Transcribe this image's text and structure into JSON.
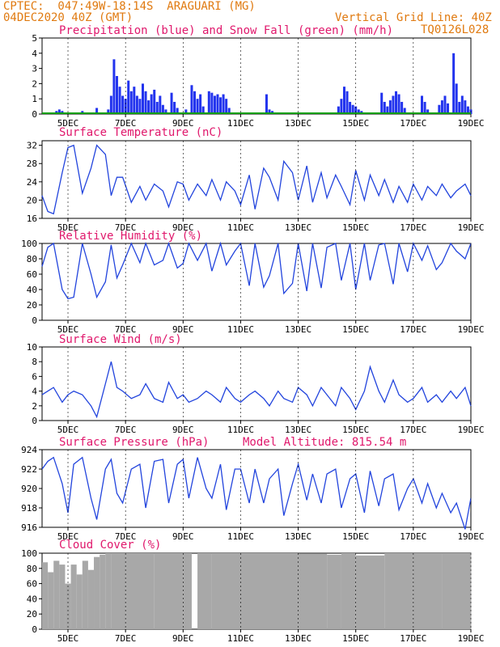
{
  "header": {
    "line1": "CPTEC:  047:49W-18:14S  ARAGUARI (MG)",
    "line2": "04DEC2020 40Z (GMT)",
    "vgrid": "Vertical Grid Line: 40Z",
    "code": "TQ0126L028"
  },
  "colors": {
    "header": "#e07a10",
    "title": "#e0186c",
    "line": "#2244dd",
    "precip": "#2233ee",
    "snow": "#10a010",
    "cloud": "#a8a8a8"
  },
  "x_ticks": [
    "5DEC",
    "7DEC",
    "9DEC",
    "11DEC",
    "13DEC",
    "15DEC",
    "17DEC",
    "19DEC"
  ],
  "chart_data": [
    {
      "id": "precip",
      "type": "bar",
      "title": "Precipitation (blue) and Snow Fall (green) (mm/h)",
      "ylim": [
        0,
        5
      ],
      "yticks": [
        0,
        1,
        2,
        3,
        4,
        5
      ],
      "x_range_days": [
        4.1,
        19.0
      ],
      "series": [
        {
          "name": "Precipitation",
          "values": [
            [
              4.5,
              0.1
            ],
            [
              4.6,
              0.2
            ],
            [
              4.7,
              0.3
            ],
            [
              4.8,
              0.2
            ],
            [
              5.0,
              0.1
            ],
            [
              5.2,
              0.1
            ],
            [
              5.5,
              0.2
            ],
            [
              5.6,
              0.1
            ],
            [
              6.0,
              0.4
            ],
            [
              6.4,
              0.3
            ],
            [
              6.5,
              1.2
            ],
            [
              6.6,
              3.6
            ],
            [
              6.7,
              2.5
            ],
            [
              6.8,
              1.8
            ],
            [
              6.9,
              1.2
            ],
            [
              7.0,
              1.0
            ],
            [
              7.1,
              2.2
            ],
            [
              7.2,
              1.5
            ],
            [
              7.3,
              1.8
            ],
            [
              7.4,
              1.2
            ],
            [
              7.5,
              1.0
            ],
            [
              7.6,
              2.0
            ],
            [
              7.7,
              1.5
            ],
            [
              7.8,
              0.9
            ],
            [
              7.9,
              1.3
            ],
            [
              8.0,
              1.6
            ],
            [
              8.1,
              0.8
            ],
            [
              8.2,
              1.2
            ],
            [
              8.3,
              0.6
            ],
            [
              8.4,
              0.3
            ],
            [
              8.6,
              1.4
            ],
            [
              8.7,
              0.8
            ],
            [
              8.8,
              0.4
            ],
            [
              9.1,
              0.3
            ],
            [
              9.3,
              1.9
            ],
            [
              9.4,
              1.5
            ],
            [
              9.5,
              1.0
            ],
            [
              9.6,
              1.3
            ],
            [
              9.7,
              0.5
            ],
            [
              9.9,
              1.5
            ],
            [
              10.0,
              1.4
            ],
            [
              10.1,
              1.2
            ],
            [
              10.2,
              1.3
            ],
            [
              10.3,
              1.1
            ],
            [
              10.4,
              1.3
            ],
            [
              10.5,
              1.0
            ],
            [
              10.6,
              0.4
            ],
            [
              11.9,
              1.3
            ],
            [
              12.0,
              0.3
            ],
            [
              12.1,
              0.2
            ],
            [
              14.4,
              0.5
            ],
            [
              14.5,
              1.0
            ],
            [
              14.6,
              1.8
            ],
            [
              14.7,
              1.5
            ],
            [
              14.8,
              0.8
            ],
            [
              14.9,
              0.6
            ],
            [
              15.0,
              0.5
            ],
            [
              15.1,
              0.3
            ],
            [
              15.2,
              0.2
            ],
            [
              15.9,
              1.4
            ],
            [
              16.0,
              0.8
            ],
            [
              16.1,
              0.5
            ],
            [
              16.2,
              0.9
            ],
            [
              16.3,
              1.2
            ],
            [
              16.4,
              1.5
            ],
            [
              16.5,
              1.3
            ],
            [
              16.6,
              0.8
            ],
            [
              16.7,
              0.4
            ],
            [
              17.3,
              1.2
            ],
            [
              17.4,
              0.8
            ],
            [
              17.5,
              0.3
            ],
            [
              17.9,
              0.6
            ],
            [
              18.0,
              0.9
            ],
            [
              18.1,
              1.2
            ],
            [
              18.2,
              0.7
            ],
            [
              18.4,
              4.0
            ],
            [
              18.5,
              2.0
            ],
            [
              18.6,
              0.8
            ],
            [
              18.7,
              1.2
            ],
            [
              18.8,
              0.9
            ],
            [
              18.9,
              0.5
            ],
            [
              19.0,
              0.3
            ]
          ]
        },
        {
          "name": "Snow Fall",
          "values": [
            [
              4.1,
              0
            ],
            [
              19.0,
              0
            ]
          ]
        }
      ]
    },
    {
      "id": "temp",
      "type": "line",
      "title": "Surface Temperature (nC)",
      "ylim": [
        16,
        33
      ],
      "yticks": [
        16,
        20,
        24,
        28,
        32
      ],
      "series": [
        {
          "x": [
            4.1,
            4.3,
            4.5,
            4.8,
            5.0,
            5.2,
            5.5,
            5.8,
            6.0,
            6.3,
            6.5,
            6.7,
            6.9,
            7.2,
            7.5,
            7.7,
            8.0,
            8.3,
            8.5,
            8.8,
            9.0,
            9.2,
            9.5,
            9.8,
            10.0,
            10.3,
            10.5,
            10.8,
            11.0,
            11.3,
            11.5,
            11.8,
            12.0,
            12.3,
            12.5,
            12.8,
            13.0,
            13.3,
            13.5,
            13.8,
            14.0,
            14.3,
            14.5,
            14.8,
            15.0,
            15.3,
            15.5,
            15.8,
            16.0,
            16.3,
            16.5,
            16.8,
            17.0,
            17.3,
            17.5,
            17.8,
            18.0,
            18.3,
            18.5,
            18.8,
            19.0
          ],
          "y": [
            21,
            17.5,
            17,
            26,
            31.5,
            32,
            21.5,
            27,
            32,
            30,
            21,
            25,
            25,
            19.5,
            23,
            20,
            23.5,
            22,
            18.5,
            24,
            23.5,
            20,
            23.5,
            21,
            24.5,
            20,
            24,
            22,
            19,
            25.5,
            18,
            27,
            25,
            20,
            28.5,
            26,
            20,
            27.5,
            19.5,
            26,
            20.5,
            25.5,
            23,
            19,
            26.5,
            20,
            25.5,
            21,
            24.5,
            19.5,
            23,
            19.5,
            23.5,
            20,
            23,
            21,
            23.5,
            20.5,
            22,
            23.5,
            21
          ]
        }
      ]
    },
    {
      "id": "rh",
      "type": "line",
      "title": "Relative Humidity (%)",
      "ylim": [
        0,
        100
      ],
      "yticks": [
        0,
        20,
        40,
        60,
        80,
        100
      ],
      "series": [
        {
          "x": [
            4.1,
            4.3,
            4.5,
            4.8,
            5.0,
            5.2,
            5.5,
            5.8,
            6.0,
            6.3,
            6.5,
            6.7,
            6.9,
            7.2,
            7.5,
            7.7,
            8.0,
            8.3,
            8.5,
            8.8,
            9.0,
            9.2,
            9.5,
            9.8,
            10.0,
            10.3,
            10.5,
            10.8,
            11.0,
            11.3,
            11.5,
            11.8,
            12.0,
            12.3,
            12.5,
            12.8,
            13.0,
            13.3,
            13.5,
            13.8,
            14.0,
            14.3,
            14.5,
            14.8,
            15.0,
            15.3,
            15.5,
            15.8,
            16.0,
            16.3,
            16.5,
            16.8,
            17.0,
            17.3,
            17.5,
            17.8,
            18.0,
            18.3,
            18.5,
            18.8,
            19.0
          ],
          "y": [
            70,
            95,
            100,
            40,
            28,
            30,
            100,
            60,
            30,
            50,
            98,
            55,
            72,
            100,
            75,
            100,
            72,
            78,
            100,
            68,
            74,
            100,
            78,
            100,
            64,
            100,
            72,
            90,
            100,
            45,
            100,
            43,
            58,
            100,
            35,
            48,
            100,
            38,
            100,
            42,
            95,
            100,
            52,
            100,
            40,
            100,
            52,
            98,
            100,
            47,
            100,
            63,
            100,
            78,
            97,
            66,
            75,
            100,
            90,
            80,
            100
          ]
        }
      ]
    },
    {
      "id": "wind",
      "type": "line",
      "title": "Surface Wind (m/s)",
      "ylim": [
        0,
        10
      ],
      "yticks": [
        0,
        2,
        4,
        6,
        8,
        10
      ],
      "series": [
        {
          "x": [
            4.1,
            4.3,
            4.5,
            4.8,
            5.0,
            5.2,
            5.5,
            5.8,
            6.0,
            6.3,
            6.5,
            6.7,
            6.9,
            7.2,
            7.5,
            7.7,
            8.0,
            8.3,
            8.5,
            8.8,
            9.0,
            9.2,
            9.5,
            9.8,
            10.0,
            10.3,
            10.5,
            10.8,
            11.0,
            11.3,
            11.5,
            11.8,
            12.0,
            12.3,
            12.5,
            12.8,
            13.0,
            13.3,
            13.5,
            13.8,
            14.0,
            14.3,
            14.5,
            14.8,
            15.0,
            15.3,
            15.5,
            15.8,
            16.0,
            16.3,
            16.5,
            16.8,
            17.0,
            17.3,
            17.5,
            17.8,
            18.0,
            18.3,
            18.5,
            18.8,
            19.0
          ],
          "y": [
            3.5,
            4.0,
            4.5,
            2.5,
            3.5,
            4.0,
            3.5,
            2.0,
            0.5,
            5.0,
            8.0,
            4.5,
            4.0,
            3.0,
            3.5,
            5.0,
            3.0,
            2.5,
            5.2,
            3.0,
            3.5,
            2.5,
            3.0,
            4.0,
            3.5,
            2.5,
            4.5,
            3.0,
            2.5,
            3.5,
            4.0,
            3.0,
            2.0,
            4.0,
            3.0,
            2.5,
            4.5,
            3.5,
            2.0,
            4.5,
            3.5,
            2.0,
            4.5,
            3.0,
            1.5,
            4.0,
            7.3,
            4.0,
            2.5,
            5.5,
            3.5,
            2.5,
            3.0,
            4.5,
            2.5,
            3.5,
            2.5,
            4.0,
            3.0,
            4.5,
            2.0
          ]
        }
      ]
    },
    {
      "id": "press",
      "type": "line",
      "title": "Surface Pressure (hPa)",
      "subtitle": "Model Altitude: 815.54 m",
      "ylim": [
        916,
        924
      ],
      "yticks": [
        916,
        918,
        920,
        922,
        924
      ],
      "series": [
        {
          "x": [
            4.1,
            4.3,
            4.5,
            4.8,
            5.0,
            5.2,
            5.5,
            5.8,
            6.0,
            6.3,
            6.5,
            6.7,
            6.9,
            7.2,
            7.5,
            7.7,
            8.0,
            8.3,
            8.5,
            8.8,
            9.0,
            9.2,
            9.5,
            9.8,
            10.0,
            10.3,
            10.5,
            10.8,
            11.0,
            11.3,
            11.5,
            11.8,
            12.0,
            12.3,
            12.5,
            12.8,
            13.0,
            13.3,
            13.5,
            13.8,
            14.0,
            14.3,
            14.5,
            14.8,
            15.0,
            15.3,
            15.5,
            15.8,
            16.0,
            16.3,
            16.5,
            16.8,
            17.0,
            17.3,
            17.5,
            17.8,
            18.0,
            18.3,
            18.5,
            18.8,
            19.0
          ],
          "y": [
            922.0,
            922.8,
            923.2,
            920.5,
            917.5,
            922.5,
            923.2,
            919.0,
            916.8,
            922.0,
            923.0,
            919.5,
            918.5,
            922.0,
            922.5,
            918.0,
            922.8,
            923.0,
            918.5,
            922.5,
            923.0,
            919.0,
            923.2,
            920.0,
            919.0,
            922.5,
            917.8,
            922.0,
            922.0,
            918.5,
            922.0,
            918.5,
            921.0,
            922.0,
            917.2,
            920.5,
            922.5,
            918.8,
            921.5,
            918.5,
            921.5,
            922.0,
            918.0,
            921.0,
            921.5,
            917.5,
            921.8,
            918.2,
            921.0,
            921.5,
            917.8,
            920.0,
            921.0,
            918.5,
            920.5,
            918.0,
            919.5,
            917.5,
            918.5,
            915.8,
            919.0
          ]
        }
      ]
    },
    {
      "id": "cloud",
      "type": "bar",
      "title": "Cloud Cover (%)",
      "ylim": [
        0,
        100
      ],
      "yticks": [
        0,
        20,
        40,
        60,
        80,
        100
      ],
      "series": [
        {
          "x": [
            4.1,
            4.3,
            4.5,
            4.7,
            4.9,
            5.1,
            5.3,
            5.5,
            5.7,
            5.9,
            6.1,
            6.3,
            6.5,
            7.0,
            8.0,
            9.0,
            9.3,
            9.5,
            10.0,
            11.0,
            12.0,
            13.0,
            14.0,
            14.5,
            15.0,
            16.0,
            17.0,
            18.0,
            19.0
          ],
          "y": [
            88,
            75,
            90,
            85,
            60,
            85,
            72,
            90,
            78,
            95,
            98,
            100,
            100,
            100,
            100,
            100,
            0,
            100,
            100,
            100,
            100,
            99,
            98,
            100,
            97,
            100,
            100,
            100,
            100
          ]
        }
      ]
    }
  ]
}
